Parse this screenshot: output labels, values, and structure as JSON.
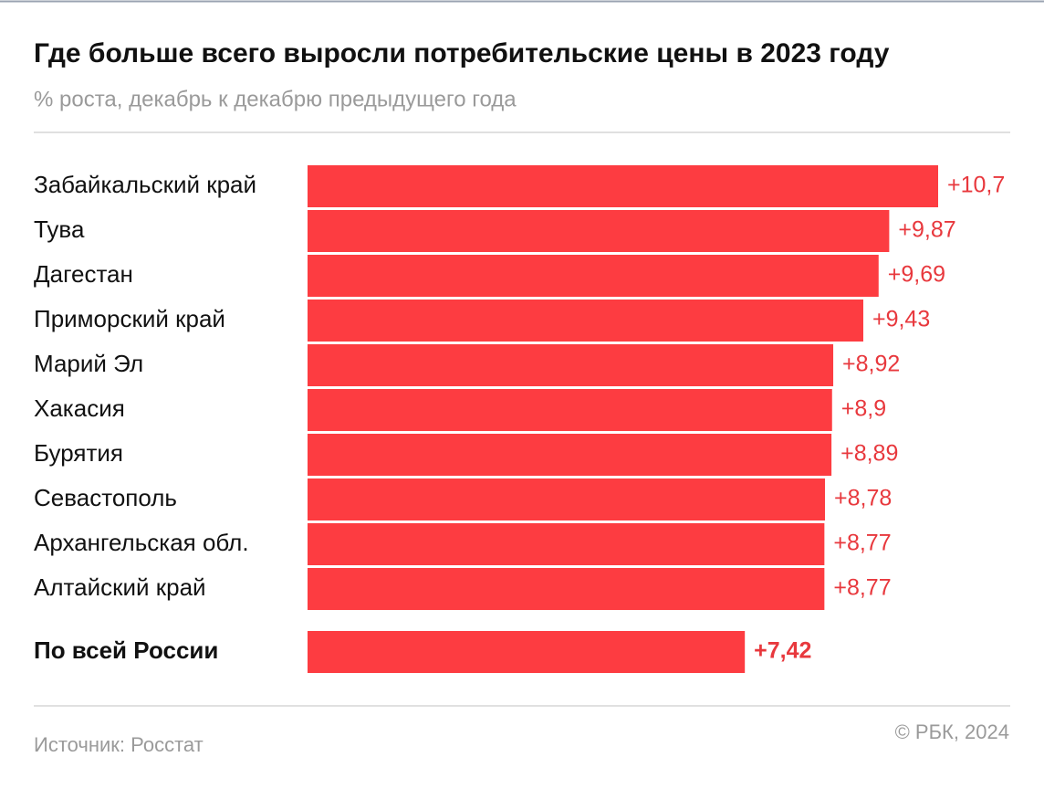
{
  "chart_data": {
    "type": "bar",
    "orientation": "horizontal",
    "title": "Где больше всего выросли потребительские цены в 2023 году",
    "subtitle": "% роста, декабрь к декабрю предыдущего года",
    "categories": [
      "Забайкальский край",
      "Тува",
      "Дагестан",
      "Приморский край",
      "Марий Эл",
      "Хакасия",
      "Бурятия",
      "Севастополь",
      "Архангельская обл.",
      "Алтайский край"
    ],
    "values": [
      10.7,
      9.87,
      9.69,
      9.43,
      8.92,
      8.9,
      8.89,
      8.78,
      8.77,
      8.77
    ],
    "value_labels": [
      "+10,7",
      "+9,87",
      "+9,69",
      "+9,43",
      "+8,92",
      "+8,9",
      "+8,89",
      "+8,78",
      "+8,77",
      "+8,77"
    ],
    "total": {
      "category": "По всей России",
      "value": 7.42,
      "value_label": "+7,42"
    },
    "color": "#fd3c41",
    "label_color": "#e8383d",
    "source": "Источник: Росстат",
    "copyright": "© РБК, 2024"
  }
}
